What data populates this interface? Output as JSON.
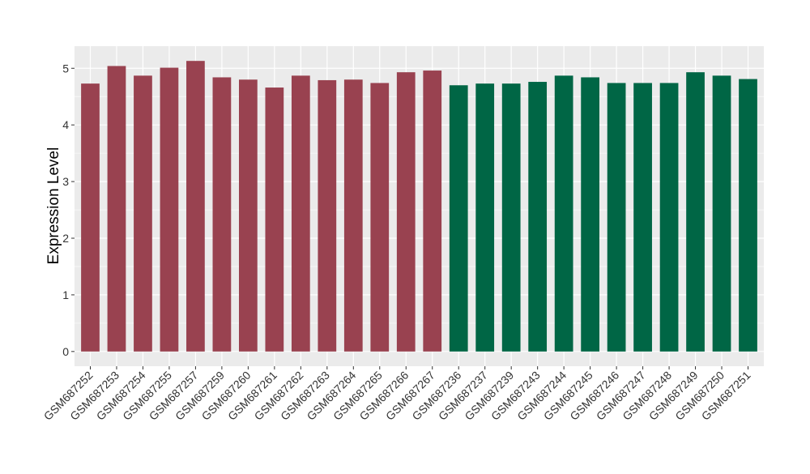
{
  "chart_data": {
    "type": "bar",
    "title": "",
    "xlabel": "",
    "ylabel": "Expression Level",
    "ylim": [
      -0.26,
      5.39
    ],
    "yticks": [
      0,
      1,
      2,
      3,
      4,
      5
    ],
    "grid": true,
    "legend": "none",
    "categories": [
      "GSM687252",
      "GSM687253",
      "GSM687254",
      "GSM687255",
      "GSM687257",
      "GSM687259",
      "GSM687260",
      "GSM687261",
      "GSM687262",
      "GSM687263",
      "GSM687264",
      "GSM687265",
      "GSM687266",
      "GSM687267",
      "GSM687236",
      "GSM687237",
      "GSM687239",
      "GSM687243",
      "GSM687244",
      "GSM687245",
      "GSM687246",
      "GSM687247",
      "GSM687248",
      "GSM687249",
      "GSM687250",
      "GSM687251"
    ],
    "values": [
      4.73,
      5.04,
      4.87,
      5.01,
      5.13,
      4.84,
      4.8,
      4.66,
      4.87,
      4.79,
      4.8,
      4.74,
      4.93,
      4.96,
      4.7,
      4.73,
      4.73,
      4.76,
      4.87,
      4.84,
      4.74,
      4.74,
      4.74,
      4.93,
      4.87,
      4.81
    ],
    "group_colors": [
      "#994250",
      "#994250",
      "#994250",
      "#994250",
      "#994250",
      "#994250",
      "#994250",
      "#994250",
      "#994250",
      "#994250",
      "#994250",
      "#994250",
      "#994250",
      "#994250",
      "#006645",
      "#006645",
      "#006645",
      "#006645",
      "#006645",
      "#006645",
      "#006645",
      "#006645",
      "#006645",
      "#006645",
      "#006645",
      "#006645"
    ],
    "panel_background": "#EBEBEB"
  }
}
